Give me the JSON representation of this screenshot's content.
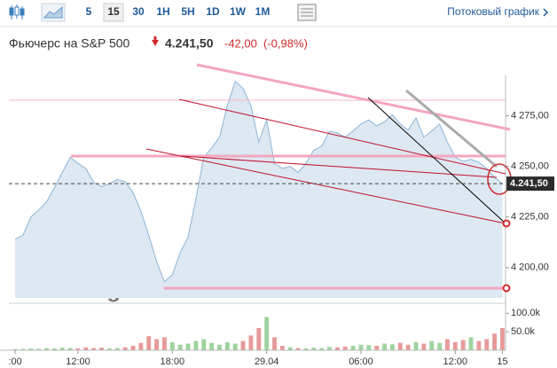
{
  "toolbar": {
    "intervals": [
      "5",
      "15",
      "30",
      "1H",
      "5H",
      "1D",
      "1W",
      "1M"
    ],
    "selected": 1,
    "link": "Потоковый график"
  },
  "header": {
    "price": "4.241,50",
    "change": "-42,00",
    "change_pct": "(-0,98%)"
  },
  "watermark": "Investing.com",
  "chart_data": [
    {
      "type": "area",
      "title": "Фьючерс на S&P 500",
      "color": "#8fb4d6",
      "fill": "#dde8f2",
      "x": [
        8,
        8.5,
        9,
        9.5,
        10,
        10.5,
        11,
        11.5,
        12,
        12.5,
        13,
        13.5,
        14,
        14.5,
        15,
        15.5,
        16,
        16.5,
        17,
        17.5,
        18,
        18.5,
        19,
        19.5,
        20,
        20.5,
        21,
        21.5,
        22,
        22.5,
        23,
        23.5,
        24,
        24.5,
        25,
        25.5,
        26,
        26.5,
        27,
        27.5,
        28,
        28.5,
        29,
        29.5,
        30,
        30.5,
        31,
        31.5,
        32,
        32.5,
        33,
        33.5,
        34,
        34.5,
        35,
        35.5,
        36,
        36.5,
        37,
        37.5,
        38,
        38.5,
        39
      ],
      "values": [
        4214,
        4216,
        4225,
        4228.5,
        4232.5,
        4239.5,
        4247,
        4254.5,
        4251.5,
        4249,
        4242,
        4240,
        4241.5,
        4243.5,
        4242.5,
        4237,
        4228,
        4216,
        4203,
        4193,
        4196.5,
        4207.5,
        4215,
        4234,
        4254.5,
        4259,
        4264.5,
        4280,
        4292,
        4288.5,
        4280,
        4262,
        4273,
        4251.5,
        4249,
        4250,
        4247,
        4251.5,
        4258,
        4260,
        4267.5,
        4266.5,
        4264.5,
        4267.5,
        4271,
        4273,
        4270,
        4272,
        4275.5,
        4271,
        4268,
        4274,
        4264.5,
        4267.5,
        4271,
        4262,
        4254.5,
        4252.5,
        4253.5,
        4252,
        4249,
        4244.5,
        4241.5
      ],
      "xlim": [
        7.6,
        39.2
      ],
      "ylim": [
        4185,
        4295
      ],
      "yticks": [
        {
          "value": 4275,
          "label": "4 275,00"
        },
        {
          "value": 4250,
          "label": "4 250,00"
        },
        {
          "value": 4225,
          "label": "4 225,00"
        },
        {
          "value": 4200,
          "label": "4 200,00"
        }
      ],
      "grid": false
    },
    {
      "type": "bar",
      "up_color": "#9fd39f",
      "down_color": "#e79a9a",
      "x": [
        8,
        8.5,
        9,
        9.5,
        10,
        10.5,
        11,
        11.5,
        12,
        12.5,
        13,
        13.5,
        14,
        14.5,
        15,
        15.5,
        16,
        16.5,
        17,
        17.5,
        18,
        18.5,
        19,
        19.5,
        20,
        20.5,
        21,
        21.5,
        22,
        22.5,
        23,
        23.5,
        24,
        24.5,
        25,
        25.5,
        26,
        26.5,
        27,
        27.5,
        28,
        28.5,
        29,
        29.5,
        30,
        30.5,
        31,
        31.5,
        32,
        32.5,
        33,
        33.5,
        34,
        34.5,
        35,
        35.5,
        36,
        36.5,
        37,
        37.5,
        38,
        38.5,
        39
      ],
      "values": [
        3000,
        4000,
        5000,
        4000,
        6000,
        5000,
        7000,
        6000,
        5000,
        8000,
        6000,
        7000,
        5000,
        6000,
        8000,
        12000,
        20000,
        38000,
        30000,
        35000,
        22000,
        15000,
        18000,
        25000,
        30000,
        20000,
        15000,
        22000,
        18000,
        25000,
        40000,
        60000,
        90000,
        35000,
        12000,
        8000,
        6000,
        5000,
        7000,
        6000,
        9000,
        8000,
        10000,
        12000,
        15000,
        14000,
        12000,
        18000,
        16000,
        20000,
        15000,
        22000,
        18000,
        25000,
        20000,
        30000,
        22000,
        28000,
        35000,
        25000,
        30000,
        45000,
        60000
      ],
      "xlim": [
        7.6,
        39.2
      ],
      "ylim": [
        0,
        120000
      ],
      "yticks": [
        {
          "value": 100000,
          "label": "100.0k"
        },
        {
          "value": 50000,
          "label": "50.0k"
        }
      ],
      "xticks": [
        {
          "value": 8,
          "label": ":00"
        },
        {
          "value": 12,
          "label": "12:00"
        },
        {
          "value": 18,
          "label": "18:00"
        },
        {
          "value": 24,
          "label": "29.04"
        },
        {
          "value": 30,
          "label": "06:00"
        },
        {
          "value": 36,
          "label": "12:00"
        },
        {
          "value": 39,
          "label": "15"
        }
      ]
    }
  ]
}
